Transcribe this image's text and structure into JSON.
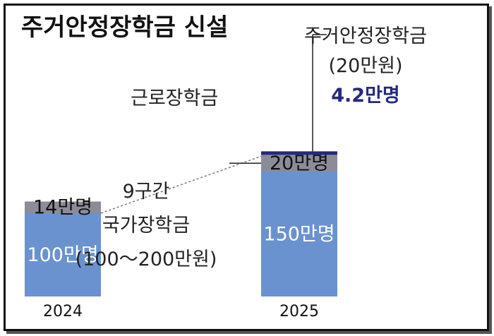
{
  "title": "주거안정장학금 신설",
  "colors": {
    "base": "#6a92cf",
    "work": "#8c8c98",
    "housing": "#25297a",
    "text": "#222222"
  },
  "chart_data": {
    "type": "bar",
    "stacked": true,
    "categories": [
      "2024",
      "2025"
    ],
    "series": [
      {
        "name": "9구간 국가장학금 (100~200만원)",
        "values": [
          100,
          150
        ],
        "labels": [
          "100만명",
          "150만명"
        ]
      },
      {
        "name": "근로장학금",
        "values": [
          14,
          20
        ],
        "labels": [
          "14만명",
          "20만명"
        ]
      },
      {
        "name": "주거안정장학금 (20만원)",
        "values": [
          0,
          4.2
        ],
        "labels": [
          "",
          "4.2만명"
        ]
      }
    ],
    "annotations": {
      "base_line1": "9구간",
      "base_line2": "국가장학금",
      "base_line3": "(100～200만원)",
      "work_label": "근로장학금",
      "housing_line1": "주거안정장학금",
      "housing_line2": "(20만원)"
    }
  }
}
